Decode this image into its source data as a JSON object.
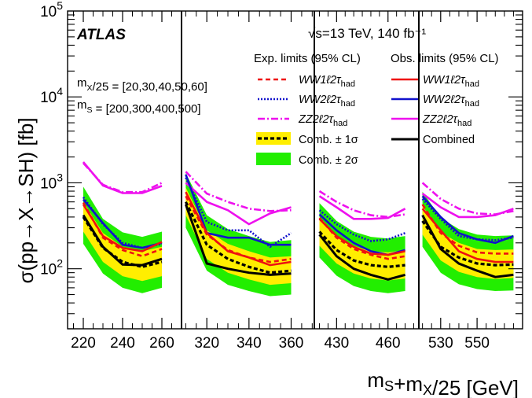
{
  "chart_data": {
    "type": "line",
    "title": "",
    "experiment_label": "ATLAS",
    "energy_label": "√s=13 TeV, 140 fb⁻¹",
    "mass_lines": [
      "m_X/25 = [20,30,40,50,60]",
      "m_S = [200,300,400,500]"
    ],
    "ylabel": "σ(pp→X→SH) [fb]",
    "xlabel": "m_S+m_X/25 [GeV]",
    "yscale": "log",
    "ylim": [
      20,
      100000
    ],
    "y_ticks": [
      {
        "value": 100,
        "label": "10",
        "exp": "2"
      },
      {
        "value": 1000,
        "label": "10",
        "exp": "3"
      },
      {
        "value": 10000,
        "label": "10",
        "exp": "4"
      },
      {
        "value": 100000,
        "label": "10",
        "exp": "5"
      }
    ],
    "legend": {
      "exp_header": "Exp. limits (95% CL)",
      "obs_header": "Obs. limits (95% CL)",
      "exp_entries": [
        {
          "key": "ww1",
          "main": "WW1ℓ2τ",
          "sub": "had"
        },
        {
          "key": "ww2",
          "main": "WW2ℓ2τ",
          "sub": "had"
        },
        {
          "key": "zz2",
          "main": "ZZ2ℓ2τ",
          "sub": "had"
        },
        {
          "key": "comb1",
          "main": "Comb. ± 1σ",
          "sub": ""
        },
        {
          "key": "comb2",
          "main": "Comb. ± 2σ",
          "sub": ""
        }
      ],
      "obs_entries": [
        {
          "key": "ww1",
          "main": "WW1ℓ2τ",
          "sub": "had"
        },
        {
          "key": "ww2",
          "main": "WW2ℓ2τ",
          "sub": "had"
        },
        {
          "key": "zz2",
          "main": "ZZ2ℓ2τ",
          "sub": "had"
        },
        {
          "key": "comb",
          "main": "Combined",
          "sub": ""
        }
      ]
    },
    "colors": {
      "ww1": "#ee1111",
      "ww2": "#1111cc",
      "zz2": "#ee11ee",
      "comb": "#000000",
      "band1": "#ffee00",
      "band2": "#22ee00"
    },
    "panels": [
      {
        "m_S": 200,
        "x": [
          220,
          230,
          240,
          250,
          260
        ],
        "xlim": [
          212,
          270
        ],
        "ticks": [
          220,
          240,
          260
        ],
        "expected": {
          "ww1": [
            590,
            230,
            165,
            140,
            170
          ],
          "ww2": [
            680,
            330,
            200,
            175,
            195
          ],
          "zz2": [
            1700,
            950,
            780,
            780,
            1000
          ],
          "comb": [
            400,
            175,
            120,
            105,
            120
          ]
        },
        "observed": {
          "ww1": [
            560,
            240,
            175,
            160,
            205
          ],
          "ww2": [
            640,
            340,
            190,
            175,
            200
          ],
          "zz2": [
            1750,
            930,
            760,
            760,
            920
          ],
          "comb": [
            420,
            180,
            112,
            110,
            130
          ]
        },
        "band1": {
          "lo": [
            270,
            120,
            82,
            72,
            82
          ],
          "hi": [
            600,
            260,
            180,
            160,
            180
          ]
        },
        "band2": {
          "lo": [
            195,
            88,
            60,
            52,
            60
          ],
          "hi": [
            900,
            380,
            265,
            235,
            270
          ]
        }
      },
      {
        "m_S": 300,
        "x": [
          310,
          320,
          330,
          340,
          350,
          360
        ],
        "xlim": [
          308,
          371
        ],
        "ticks": [
          320,
          340,
          360
        ],
        "expected": {
          "ww1": [
            700,
            250,
            165,
            135,
            120,
            130
          ],
          "ww2": [
            1150,
            350,
            280,
            280,
            180,
            260
          ],
          "zz2": [
            1350,
            750,
            600,
            500,
            470,
            480
          ],
          "comb": [
            600,
            190,
            130,
            105,
            90,
            95
          ]
        },
        "observed": {
          "ww1": [
            780,
            260,
            160,
            135,
            110,
            120
          ],
          "ww2": [
            1250,
            260,
            230,
            230,
            190,
            190
          ],
          "zz2": [
            1000,
            600,
            480,
            330,
            440,
            520
          ],
          "comb": [
            560,
            115,
            100,
            90,
            85,
            88
          ]
        },
        "band1": {
          "lo": [
            420,
            130,
            90,
            75,
            65,
            68
          ],
          "hi": [
            880,
            280,
            195,
            160,
            135,
            140
          ]
        },
        "band2": {
          "lo": [
            300,
            95,
            65,
            55,
            48,
            50
          ],
          "hi": [
            1300,
            420,
            290,
            240,
            205,
            215
          ]
        }
      },
      {
        "m_S": 400,
        "x": [
          420,
          430,
          440,
          450,
          460,
          470
        ],
        "xlim": [
          417,
          478
        ],
        "ticks": [
          430,
          460
        ],
        "expected": {
          "ww1": [
            390,
            230,
            170,
            145,
            130,
            140
          ],
          "ww2": [
            480,
            330,
            250,
            210,
            220,
            260
          ],
          "zz2": [
            800,
            600,
            480,
            420,
            400,
            430
          ],
          "comb": [
            270,
            165,
            125,
            110,
            105,
            110
          ]
        },
        "observed": {
          "ww1": [
            380,
            240,
            180,
            150,
            145,
            160
          ],
          "ww2": [
            430,
            280,
            200,
            160,
            145,
            165
          ],
          "zz2": [
            700,
            520,
            380,
            380,
            390,
            500
          ],
          "comb": [
            250,
            140,
            100,
            85,
            75,
            85
          ]
        },
        "band1": {
          "lo": [
            185,
            115,
            88,
            77,
            73,
            77
          ],
          "hi": [
            400,
            245,
            185,
            160,
            155,
            165
          ]
        },
        "band2": {
          "lo": [
            135,
            83,
            63,
            55,
            52,
            55
          ],
          "hi": [
            580,
            360,
            270,
            235,
            225,
            240
          ]
        }
      },
      {
        "m_S": 500,
        "x": [
          520,
          530,
          540,
          550,
          560,
          570
        ],
        "xlim": [
          518,
          575
        ],
        "ticks": [
          530,
          550
        ],
        "expected": {
          "ww1": [
            560,
            260,
            185,
            155,
            150,
            150
          ],
          "ww2": [
            650,
            380,
            240,
            220,
            215,
            230
          ],
          "zz2": [
            1000,
            650,
            500,
            440,
            430,
            470
          ],
          "comb": [
            360,
            180,
            135,
            115,
            110,
            112
          ]
        },
        "observed": {
          "ww1": [
            500,
            280,
            160,
            130,
            120,
            120
          ],
          "ww2": [
            700,
            400,
            260,
            220,
            200,
            240
          ],
          "zz2": [
            750,
            520,
            400,
            400,
            420,
            500
          ],
          "comb": [
            420,
            170,
            115,
            95,
            80,
            85
          ]
        },
        "band1": {
          "lo": [
            250,
            125,
            92,
            80,
            76,
            78
          ],
          "hi": [
            540,
            265,
            200,
            170,
            165,
            168
          ]
        },
        "band2": {
          "lo": [
            180,
            90,
            66,
            58,
            55,
            56
          ],
          "hi": [
            790,
            390,
            290,
            250,
            240,
            245
          ]
        }
      }
    ]
  }
}
